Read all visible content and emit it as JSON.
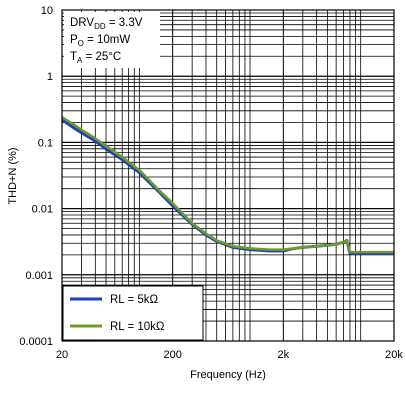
{
  "chart_data": {
    "type": "line",
    "title": "",
    "xlabel": "Frequency (Hz)",
    "ylabel": "THD+N (%)",
    "x_scale": "log",
    "y_scale": "log",
    "xlim": [
      20,
      20000
    ],
    "ylim": [
      0.0001,
      10
    ],
    "grid": true,
    "x_ticks": [
      {
        "value": 20,
        "label": "20"
      },
      {
        "value": 200,
        "label": "200"
      },
      {
        "value": 2000,
        "label": "2k"
      },
      {
        "value": 20000,
        "label": "20k"
      }
    ],
    "y_ticks": [
      {
        "value": 10,
        "label": "10"
      },
      {
        "value": 1,
        "label": "1"
      },
      {
        "value": 0.1,
        "label": "0.1"
      },
      {
        "value": 0.01,
        "label": "0.01"
      },
      {
        "value": 0.001,
        "label": "0.001"
      },
      {
        "value": 0.0001,
        "label": "0.0001"
      }
    ],
    "annotations": {
      "line1": {
        "main": "DRV",
        "sub": "DD",
        "tail": " = 3.3V"
      },
      "line2": {
        "main": "P",
        "sub": "O",
        "tail": " = 10mW"
      },
      "line3": {
        "main": "T",
        "sub": "A",
        "tail": " = 25°C"
      }
    },
    "legend_position": "bottom-left",
    "series": [
      {
        "name": "RL = 5kΩ",
        "color": "#1f3fbf",
        "x": [
          20,
          25,
          30,
          40,
          50,
          70,
          100,
          150,
          200,
          300,
          400,
          500,
          700,
          1000,
          1500,
          2000,
          2500,
          3000,
          4000,
          5000,
          6000,
          7000,
          7500,
          8000,
          10000,
          15000,
          20000
        ],
        "y": [
          0.22,
          0.17,
          0.14,
          0.105,
          0.08,
          0.055,
          0.035,
          0.018,
          0.011,
          0.0058,
          0.004,
          0.0032,
          0.0026,
          0.0024,
          0.0023,
          0.0023,
          0.0025,
          0.0026,
          0.0027,
          0.0028,
          0.0029,
          0.0031,
          0.0033,
          0.0021,
          0.0021,
          0.0021,
          0.0021
        ]
      },
      {
        "name": "RL = 10kΩ",
        "color": "#6b9b2a",
        "x": [
          20,
          25,
          30,
          40,
          50,
          70,
          100,
          150,
          200,
          300,
          400,
          500,
          700,
          1000,
          1500,
          2000,
          2500,
          3000,
          4000,
          5000,
          6000,
          7000,
          7500,
          8000,
          10000,
          15000,
          20000
        ],
        "y": [
          0.24,
          0.19,
          0.155,
          0.115,
          0.088,
          0.06,
          0.038,
          0.019,
          0.012,
          0.006,
          0.0042,
          0.0033,
          0.0027,
          0.0025,
          0.0024,
          0.0024,
          0.0025,
          0.0026,
          0.0027,
          0.0028,
          0.0029,
          0.0031,
          0.0033,
          0.0022,
          0.0022,
          0.0022,
          0.0022
        ]
      }
    ]
  }
}
